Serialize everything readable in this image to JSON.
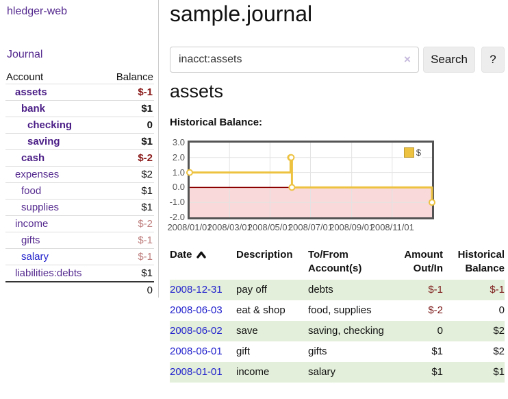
{
  "colors": {
    "visited_link_purple": "#552a8f",
    "unvisited_link_blue": "#2222cc",
    "negative_amount": "#8b1a1a",
    "negative_amount_dim": "#c08080",
    "table_negative": "#7d1a1a",
    "row_highlight_green": "#e3efda",
    "chart_series_gold": "#edc240",
    "chart_negative_region_pink": "#f9d9d9",
    "chart_zero_line_maroon": "#8b0000",
    "chart_border_gray": "#545454"
  },
  "sidebar": {
    "brand": "hledger-web",
    "journal_link": "Journal",
    "header": {
      "account": "Account",
      "balance": "Balance"
    },
    "accounts": [
      {
        "name": "assets",
        "balance": "$-1",
        "indent": 0,
        "in_query": true,
        "balance_tone": "negative"
      },
      {
        "name": "bank",
        "balance": "$1",
        "indent": 1,
        "in_query": true,
        "balance_tone": "normal"
      },
      {
        "name": "checking",
        "balance": "0",
        "indent": 2,
        "in_query": true,
        "balance_tone": "normal"
      },
      {
        "name": "saving",
        "balance": "$1",
        "indent": 2,
        "in_query": true,
        "balance_tone": "normal"
      },
      {
        "name": "cash",
        "balance": "$-2",
        "indent": 1,
        "in_query": true,
        "balance_tone": "negative"
      },
      {
        "name": "expenses",
        "balance": "$2",
        "indent": 0,
        "in_query": false,
        "balance_tone": "normal"
      },
      {
        "name": "food",
        "balance": "$1",
        "indent": 1,
        "in_query": false,
        "balance_tone": "normal"
      },
      {
        "name": "supplies",
        "balance": "$1",
        "indent": 1,
        "in_query": false,
        "balance_tone": "normal"
      },
      {
        "name": "income",
        "balance": "$-2",
        "indent": 0,
        "in_query": false,
        "balance_tone": "negative-dim"
      },
      {
        "name": "gifts",
        "balance": "$-1",
        "indent": 1,
        "in_query": false,
        "balance_tone": "negative-dim"
      },
      {
        "name": "salary",
        "balance": "$-1",
        "indent": 1,
        "in_query": false,
        "balance_tone": "negative-dim",
        "link_tone": "unvisited"
      },
      {
        "name": "liabilities:debts",
        "balance": "$1",
        "indent": 0,
        "in_query": false,
        "balance_tone": "normal"
      }
    ],
    "total_balance": "0"
  },
  "main": {
    "title": "sample.journal",
    "search": {
      "value": "inacct:assets",
      "clear_icon": "×",
      "search_button": "Search",
      "help_button": "?"
    },
    "account_heading": "assets",
    "chart_heading": "Historical Balance:"
  },
  "chart_data": {
    "type": "line",
    "step": true,
    "title": "Historical Balance",
    "series": [
      {
        "name": "$",
        "color": "#edc240",
        "points": [
          [
            "2008-01-01",
            1
          ],
          [
            "2008-06-01",
            2
          ],
          [
            "2008-06-02",
            2
          ],
          [
            "2008-06-03",
            0
          ],
          [
            "2008-12-31",
            -1
          ]
        ]
      }
    ],
    "x_range": [
      "2008-01-01",
      "2008-12-31"
    ],
    "ylim": [
      -2,
      3
    ],
    "yticks": [
      3,
      2,
      1,
      0,
      -1,
      -2
    ],
    "ytick_labels": [
      "3.0",
      "2.0",
      "1.0",
      "0.0",
      "-1.0",
      "-2.0"
    ],
    "xticks": [
      "2008-01-01",
      "2008-03-01",
      "2008-05-01",
      "2008-07-01",
      "2008-09-01",
      "2008-11-01"
    ],
    "xtick_labels": [
      "2008/01/01",
      "2008/03/01",
      "2008/05/01",
      "2008/07/01",
      "2008/09/01",
      "2008/11/01"
    ],
    "legend": {
      "label": "$",
      "position": "top-right"
    },
    "grid": true,
    "markings": {
      "below_zero_fill": "#f9d9d9",
      "zero_line": "#8b0000"
    }
  },
  "register": {
    "columns": {
      "date": "Date",
      "description": "Description",
      "accounts": "To/From Account(s)",
      "amount": "Amount Out/In",
      "balance": "Historical Balance"
    },
    "sort_icon": "caret-up",
    "rows": [
      {
        "date": "2008-12-31",
        "description": "pay off",
        "accounts": "debts",
        "amount": "$-1",
        "amount_negative": true,
        "balance": "$-1",
        "balance_negative": true,
        "highlighted": true
      },
      {
        "date": "2008-06-03",
        "description": "eat & shop",
        "accounts": "food, supplies",
        "amount": "$-2",
        "amount_negative": true,
        "balance": "0",
        "balance_negative": false,
        "highlighted": false
      },
      {
        "date": "2008-06-02",
        "description": "save",
        "accounts": "saving, checking",
        "amount": "0",
        "amount_negative": false,
        "balance": "$2",
        "balance_negative": false,
        "highlighted": true
      },
      {
        "date": "2008-06-01",
        "description": "gift",
        "accounts": "gifts",
        "amount": "$1",
        "amount_negative": false,
        "balance": "$2",
        "balance_negative": false,
        "highlighted": false
      },
      {
        "date": "2008-01-01",
        "description": "income",
        "accounts": "salary",
        "amount": "$1",
        "amount_negative": false,
        "balance": "$1",
        "balance_negative": false,
        "highlighted": true
      }
    ]
  }
}
